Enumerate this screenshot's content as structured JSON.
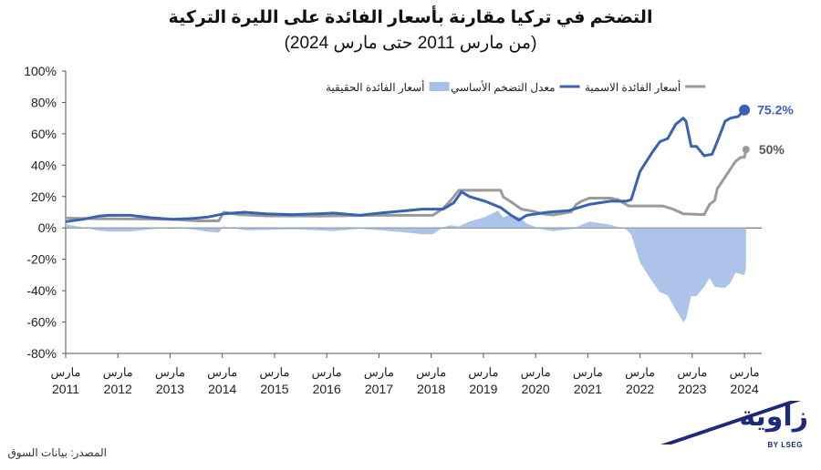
{
  "chart_data": {
    "type": "line",
    "title": "التضخم في تركيا مقارنة بأسعار الفائدة على الليرة التركية",
    "subtitle": "(من مارس 2011 حتى مارس 2024)",
    "ylim": [
      -80,
      100
    ],
    "yticks": [
      "100%",
      "80%",
      "60%",
      "40%",
      "20%",
      "0%",
      "-20%",
      "-40%",
      "-60%",
      "-80%"
    ],
    "ytick_values": [
      100,
      80,
      60,
      40,
      20,
      0,
      -20,
      -40,
      -60,
      -80
    ],
    "xlim": [
      2011.17,
      2024.5
    ],
    "xtick_month": "مارس",
    "xticks": [
      "2011",
      "2012",
      "2013",
      "2014",
      "2015",
      "2016",
      "2017",
      "2018",
      "2019",
      "2020",
      "2021",
      "2022",
      "2023",
      "2024"
    ],
    "xtick_values": [
      2011.17,
      2012.17,
      2013.17,
      2014.17,
      2015.17,
      2016.17,
      2017.17,
      2018.17,
      2019.17,
      2020.17,
      2021.17,
      2022.17,
      2023.17,
      2024.17
    ],
    "legend_position": "top-right",
    "series": [
      {
        "name": "أسعار الفائدة الاسمية",
        "kind": "line",
        "color": "#9a9a9a",
        "end_label": "50%",
        "points": [
          [
            2011.17,
            6.3
          ],
          [
            2011.8,
            5.8
          ],
          [
            2012.5,
            5.7
          ],
          [
            2013.2,
            5.5
          ],
          [
            2013.7,
            4.5
          ],
          [
            2014.1,
            4.5
          ],
          [
            2014.2,
            10
          ],
          [
            2014.5,
            8.5
          ],
          [
            2015.0,
            7.7
          ],
          [
            2016.0,
            7.5
          ],
          [
            2017.0,
            8.0
          ],
          [
            2017.5,
            8.0
          ],
          [
            2017.9,
            8.0
          ],
          [
            2018.2,
            8.0
          ],
          [
            2018.4,
            12.5
          ],
          [
            2018.55,
            17.75
          ],
          [
            2018.7,
            24
          ],
          [
            2019.3,
            24
          ],
          [
            2019.5,
            24
          ],
          [
            2019.55,
            19.75
          ],
          [
            2019.7,
            16.5
          ],
          [
            2019.9,
            12
          ],
          [
            2020.1,
            10.75
          ],
          [
            2020.3,
            9.0
          ],
          [
            2020.5,
            8.25
          ],
          [
            2020.85,
            10.25
          ],
          [
            2020.95,
            15
          ],
          [
            2021.05,
            17
          ],
          [
            2021.2,
            19
          ],
          [
            2021.6,
            19
          ],
          [
            2021.75,
            18
          ],
          [
            2021.85,
            16
          ],
          [
            2021.95,
            14
          ],
          [
            2022.2,
            14
          ],
          [
            2022.6,
            14
          ],
          [
            2022.7,
            13
          ],
          [
            2022.8,
            12
          ],
          [
            2022.9,
            10.5
          ],
          [
            2023.0,
            9
          ],
          [
            2023.4,
            8.5
          ],
          [
            2023.5,
            15
          ],
          [
            2023.6,
            17.5
          ],
          [
            2023.65,
            25
          ],
          [
            2023.75,
            30
          ],
          [
            2023.85,
            35
          ],
          [
            2023.95,
            40
          ],
          [
            2024.0,
            42.5
          ],
          [
            2024.1,
            45
          ],
          [
            2024.17,
            45
          ],
          [
            2024.2,
            50
          ]
        ]
      },
      {
        "name": "معدل التضخم الأساسي",
        "kind": "line",
        "color": "#3a62b4",
        "end_label": "75.2%",
        "points": [
          [
            2011.17,
            4
          ],
          [
            2011.5,
            5.5
          ],
          [
            2011.8,
            7.5
          ],
          [
            2012.0,
            8
          ],
          [
            2012.4,
            8
          ],
          [
            2012.8,
            6.5
          ],
          [
            2013.2,
            5.5
          ],
          [
            2013.6,
            6
          ],
          [
            2013.9,
            7
          ],
          [
            2014.2,
            9
          ],
          [
            2014.6,
            10
          ],
          [
            2015.0,
            9
          ],
          [
            2015.5,
            8.5
          ],
          [
            2016.0,
            9
          ],
          [
            2016.3,
            9.5
          ],
          [
            2016.8,
            8
          ],
          [
            2017.2,
            9.5
          ],
          [
            2017.7,
            11
          ],
          [
            2018.0,
            12
          ],
          [
            2018.4,
            12
          ],
          [
            2018.6,
            16
          ],
          [
            2018.75,
            23
          ],
          [
            2018.9,
            20
          ],
          [
            2019.2,
            17
          ],
          [
            2019.5,
            13
          ],
          [
            2019.7,
            8
          ],
          [
            2019.85,
            5
          ],
          [
            2020.0,
            8
          ],
          [
            2020.4,
            10
          ],
          [
            2020.8,
            11
          ],
          [
            2021.2,
            15
          ],
          [
            2021.6,
            17
          ],
          [
            2021.9,
            17
          ],
          [
            2022.0,
            18
          ],
          [
            2022.17,
            36
          ],
          [
            2022.4,
            48
          ],
          [
            2022.55,
            55
          ],
          [
            2022.7,
            57
          ],
          [
            2022.85,
            66
          ],
          [
            2023.0,
            70
          ],
          [
            2023.05,
            68
          ],
          [
            2023.15,
            52
          ],
          [
            2023.25,
            52
          ],
          [
            2023.4,
            46
          ],
          [
            2023.55,
            47
          ],
          [
            2023.65,
            55
          ],
          [
            2023.8,
            68
          ],
          [
            2023.9,
            70
          ],
          [
            2024.05,
            71
          ],
          [
            2024.17,
            75.2
          ]
        ]
      },
      {
        "name": "أسعار الفائدة الحقيقية",
        "kind": "area",
        "color": "#a9c0e8",
        "points": [
          [
            2011.17,
            2.3
          ],
          [
            2011.5,
            0.5
          ],
          [
            2011.8,
            -1.7
          ],
          [
            2012.0,
            -2.3
          ],
          [
            2012.4,
            -2.3
          ],
          [
            2012.8,
            -0.8
          ],
          [
            2013.2,
            0
          ],
          [
            2013.6,
            -1
          ],
          [
            2013.9,
            -2.5
          ],
          [
            2014.1,
            -3
          ],
          [
            2014.2,
            1
          ],
          [
            2014.6,
            -1.5
          ],
          [
            2015.0,
            -1.3
          ],
          [
            2015.5,
            -0.8
          ],
          [
            2016.0,
            -1.5
          ],
          [
            2016.3,
            -2
          ],
          [
            2016.8,
            -0.5
          ],
          [
            2017.2,
            -1.5
          ],
          [
            2017.7,
            -3
          ],
          [
            2018.0,
            -4
          ],
          [
            2018.2,
            -4
          ],
          [
            2018.4,
            0.5
          ],
          [
            2018.55,
            1.75
          ],
          [
            2018.7,
            1
          ],
          [
            2018.9,
            4
          ],
          [
            2019.2,
            7
          ],
          [
            2019.45,
            11
          ],
          [
            2019.55,
            6.75
          ],
          [
            2019.7,
            8.5
          ],
          [
            2019.85,
            7
          ],
          [
            2020.0,
            2.75
          ],
          [
            2020.3,
            -1
          ],
          [
            2020.5,
            -2
          ],
          [
            2020.85,
            -0.75
          ],
          [
            2021.05,
            2
          ],
          [
            2021.2,
            4
          ],
          [
            2021.6,
            2
          ],
          [
            2021.9,
            -1
          ],
          [
            2022.0,
            -4
          ],
          [
            2022.17,
            -22
          ],
          [
            2022.4,
            -34
          ],
          [
            2022.55,
            -41
          ],
          [
            2022.7,
            -43
          ],
          [
            2022.85,
            -52
          ],
          [
            2023.0,
            -60
          ],
          [
            2023.05,
            -58
          ],
          [
            2023.15,
            -43.5
          ],
          [
            2023.25,
            -43.5
          ],
          [
            2023.4,
            -37.5
          ],
          [
            2023.5,
            -32
          ],
          [
            2023.6,
            -37.5
          ],
          [
            2023.7,
            -38
          ],
          [
            2023.8,
            -38
          ],
          [
            2023.9,
            -35
          ],
          [
            2024.0,
            -28.5
          ],
          [
            2024.17,
            -30.2
          ],
          [
            2024.2,
            -25.2
          ]
        ]
      }
    ]
  },
  "source": "المصدر: بيانات السوق",
  "logo": {
    "text": "زاوية",
    "sub": "BY LSEG",
    "color": "#1b2a7a"
  }
}
